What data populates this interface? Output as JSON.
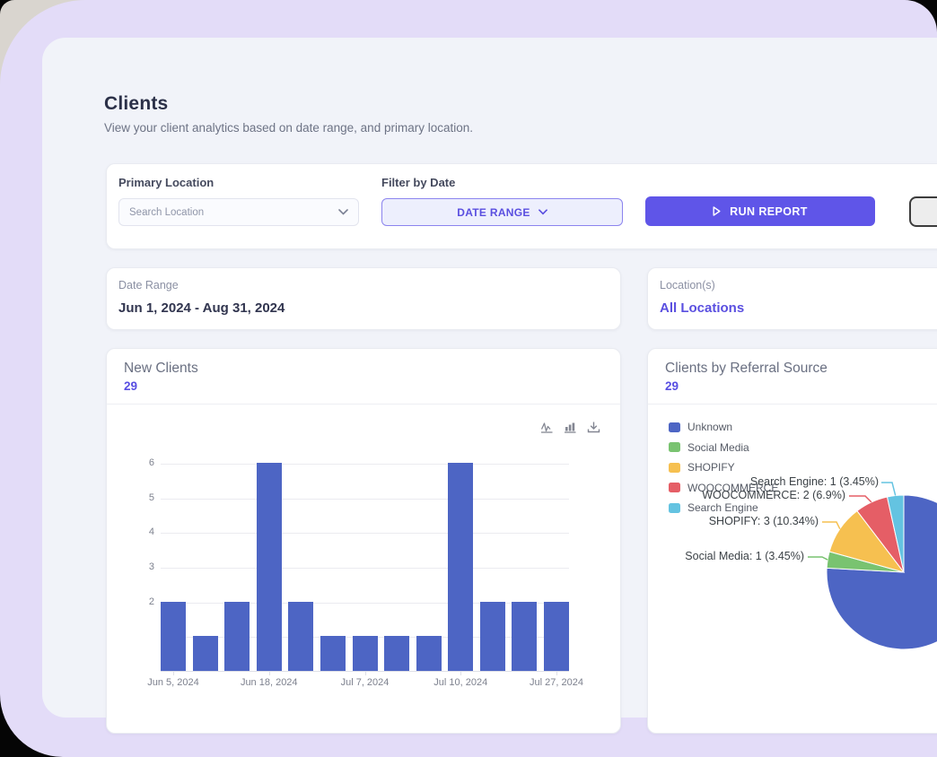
{
  "page": {
    "title": "Clients",
    "subtitle": "View your client analytics based on date range, and primary location."
  },
  "filter_bar": {
    "primary_location_label": "Primary Location",
    "location_placeholder": "Search Location",
    "filter_by_date_label": "Filter by Date",
    "date_range_button": "DATE RANGE",
    "run_report_button": "RUN REPORT"
  },
  "summary_cards": {
    "date_range_label": "Date Range",
    "date_range_value": "Jun 1, 2024 - Aug 31, 2024",
    "locations_label": "Location(s)",
    "locations_value": "All Locations"
  },
  "colors": {
    "accent_purple": "#5a4fe0",
    "run_report_bg": "#5f55e8",
    "outer_background": "#e3dcf8",
    "panel_background": "#f1f3f9",
    "bar_blue": "#4d65c4"
  },
  "chart_data": [
    {
      "type": "bar",
      "title": "New Clients",
      "total": "29",
      "values": [
        2,
        1,
        2,
        6,
        2,
        1,
        1,
        1,
        1,
        6,
        2,
        2,
        2
      ],
      "x_tick_labels": [
        "Jun 5, 2024",
        "Jun 18, 2024",
        "Jul 7, 2024",
        "Jul 10, 2024",
        "Jul 27, 2024"
      ],
      "x_tick_bar_indices": [
        0,
        3,
        6,
        9,
        12
      ],
      "y_ticks": [
        6,
        5,
        4,
        3,
        2
      ],
      "ylim": [
        0,
        6
      ],
      "bar_color": "#4d65c4",
      "grid": "horizontal"
    },
    {
      "type": "pie",
      "title": "Clients by Referral Source",
      "total": "29",
      "series": [
        {
          "name": "Unknown",
          "value": 22,
          "color": "#4d65c4"
        },
        {
          "name": "Social Media",
          "value": 1,
          "color": "#79c370"
        },
        {
          "name": "SHOPIFY",
          "value": 3,
          "color": "#f6c050"
        },
        {
          "name": "WOOCOMMERCE",
          "value": 2,
          "color": "#e55e66"
        },
        {
          "name": "Search Engine",
          "value": 1,
          "color": "#64c3e1"
        }
      ],
      "legend_position": "top-left",
      "callouts": [
        {
          "text": "Search Engine: 1 (3.45%)",
          "series": 4
        },
        {
          "text": "WOOCOMMERCE: 2 (6.9%)",
          "series": 3
        },
        {
          "text": "SHOPIFY: 3 (10.34%)",
          "series": 2
        },
        {
          "text": "Social Media: 1 (3.45%)",
          "series": 1
        }
      ]
    }
  ]
}
